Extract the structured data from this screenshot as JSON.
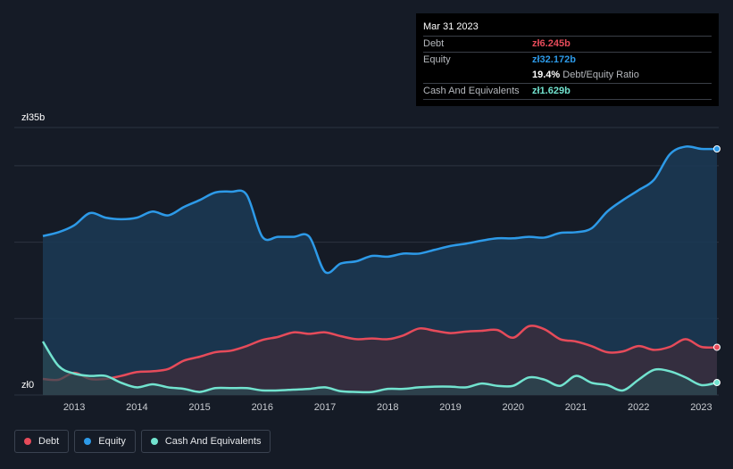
{
  "tooltip": {
    "date": "Mar 31 2023",
    "rows": [
      {
        "label": "Debt",
        "value": "zł6.245b",
        "color": "#e64b5a"
      },
      {
        "label": "Equity",
        "value": "zł32.172b",
        "color": "#2d9ae8"
      },
      {
        "label": "",
        "value": "19.4%",
        "sub": "Debt/Equity Ratio",
        "color": "#ffffff"
      },
      {
        "label": "Cash And Equivalents",
        "value": "zł1.629b",
        "color": "#72e3cf"
      }
    ]
  },
  "legend": [
    {
      "label": "Debt",
      "color": "#e64b5a"
    },
    {
      "label": "Equity",
      "color": "#2d9ae8"
    },
    {
      "label": "Cash And Equivalents",
      "color": "#72e3cf"
    }
  ],
  "chart_data": {
    "type": "area",
    "x_ticks": [
      "2013",
      "2014",
      "2015",
      "2016",
      "2017",
      "2018",
      "2019",
      "2020",
      "2021",
      "2022",
      "2023"
    ],
    "y_ticks": [
      "zł35b",
      "zł0"
    ],
    "ylim": [
      0,
      35
    ],
    "xlim": [
      2012.5,
      2023.25
    ],
    "grid": true,
    "series": [
      {
        "name": "Equity",
        "color": "#2d9ae8",
        "x": [
          2012.5,
          2012.75,
          2013.0,
          2013.25,
          2013.5,
          2013.75,
          2014.0,
          2014.25,
          2014.5,
          2014.75,
          2015.0,
          2015.25,
          2015.5,
          2015.75,
          2016.0,
          2016.25,
          2016.5,
          2016.75,
          2017.0,
          2017.25,
          2017.5,
          2017.75,
          2018.0,
          2018.25,
          2018.5,
          2018.75,
          2019.0,
          2019.25,
          2019.5,
          2019.75,
          2020.0,
          2020.25,
          2020.5,
          2020.75,
          2021.0,
          2021.25,
          2021.5,
          2021.75,
          2022.0,
          2022.25,
          2022.5,
          2022.75,
          2023.0,
          2023.25
        ],
        "values": [
          20.8,
          21.3,
          22.2,
          23.8,
          23.2,
          23.0,
          23.2,
          24.0,
          23.5,
          24.6,
          25.5,
          26.5,
          26.6,
          26.2,
          20.7,
          20.7,
          20.7,
          20.7,
          16.1,
          17.2,
          17.5,
          18.2,
          18.1,
          18.5,
          18.5,
          19.0,
          19.5,
          19.8,
          20.2,
          20.5,
          20.5,
          20.7,
          20.6,
          21.2,
          21.3,
          21.8,
          24.0,
          25.5,
          26.8,
          28.2,
          31.5,
          32.5,
          32.2,
          32.2
        ]
      },
      {
        "name": "Debt",
        "color": "#e64b5a",
        "x": [
          2012.5,
          2012.75,
          2013.0,
          2013.25,
          2013.5,
          2013.75,
          2014.0,
          2014.25,
          2014.5,
          2014.75,
          2015.0,
          2015.25,
          2015.5,
          2015.75,
          2016.0,
          2016.25,
          2016.5,
          2016.75,
          2017.0,
          2017.25,
          2017.5,
          2017.75,
          2018.0,
          2018.25,
          2018.5,
          2018.75,
          2019.0,
          2019.25,
          2019.5,
          2019.75,
          2020.0,
          2020.25,
          2020.5,
          2020.75,
          2021.0,
          2021.25,
          2021.5,
          2021.75,
          2022.0,
          2022.25,
          2022.5,
          2022.75,
          2023.0,
          2023.25
        ],
        "values": [
          2.1,
          2.0,
          2.9,
          2.1,
          2.1,
          2.5,
          3.0,
          3.1,
          3.4,
          4.5,
          5.0,
          5.6,
          5.8,
          6.4,
          7.2,
          7.6,
          8.2,
          8.0,
          8.2,
          7.7,
          7.3,
          7.4,
          7.3,
          7.8,
          8.7,
          8.4,
          8.1,
          8.3,
          8.4,
          8.5,
          7.5,
          9.0,
          8.6,
          7.3,
          7.0,
          6.4,
          5.6,
          5.7,
          6.4,
          5.9,
          6.3,
          7.3,
          6.3,
          6.245
        ]
      },
      {
        "name": "Cash And Equivalents",
        "color": "#72e3cf",
        "x": [
          2012.5,
          2012.75,
          2013.0,
          2013.25,
          2013.5,
          2013.75,
          2014.0,
          2014.25,
          2014.5,
          2014.75,
          2015.0,
          2015.25,
          2015.5,
          2015.75,
          2016.0,
          2016.25,
          2016.5,
          2016.75,
          2017.0,
          2017.25,
          2017.5,
          2017.75,
          2018.0,
          2018.25,
          2018.5,
          2018.75,
          2019.0,
          2019.25,
          2019.5,
          2019.75,
          2020.0,
          2020.25,
          2020.5,
          2020.75,
          2021.0,
          2021.25,
          2021.5,
          2021.75,
          2022.0,
          2022.25,
          2022.5,
          2022.75,
          2023.0,
          2023.25
        ],
        "values": [
          7.0,
          3.8,
          2.8,
          2.5,
          2.5,
          1.6,
          1.0,
          1.4,
          1.0,
          0.8,
          0.4,
          0.9,
          0.9,
          0.9,
          0.6,
          0.6,
          0.7,
          0.8,
          1.0,
          0.5,
          0.4,
          0.4,
          0.8,
          0.8,
          1.0,
          1.1,
          1.1,
          1.0,
          1.5,
          1.2,
          1.2,
          2.3,
          2.0,
          1.2,
          2.5,
          1.6,
          1.3,
          0.6,
          2.0,
          3.3,
          3.1,
          2.3,
          1.3,
          1.629
        ]
      }
    ]
  }
}
